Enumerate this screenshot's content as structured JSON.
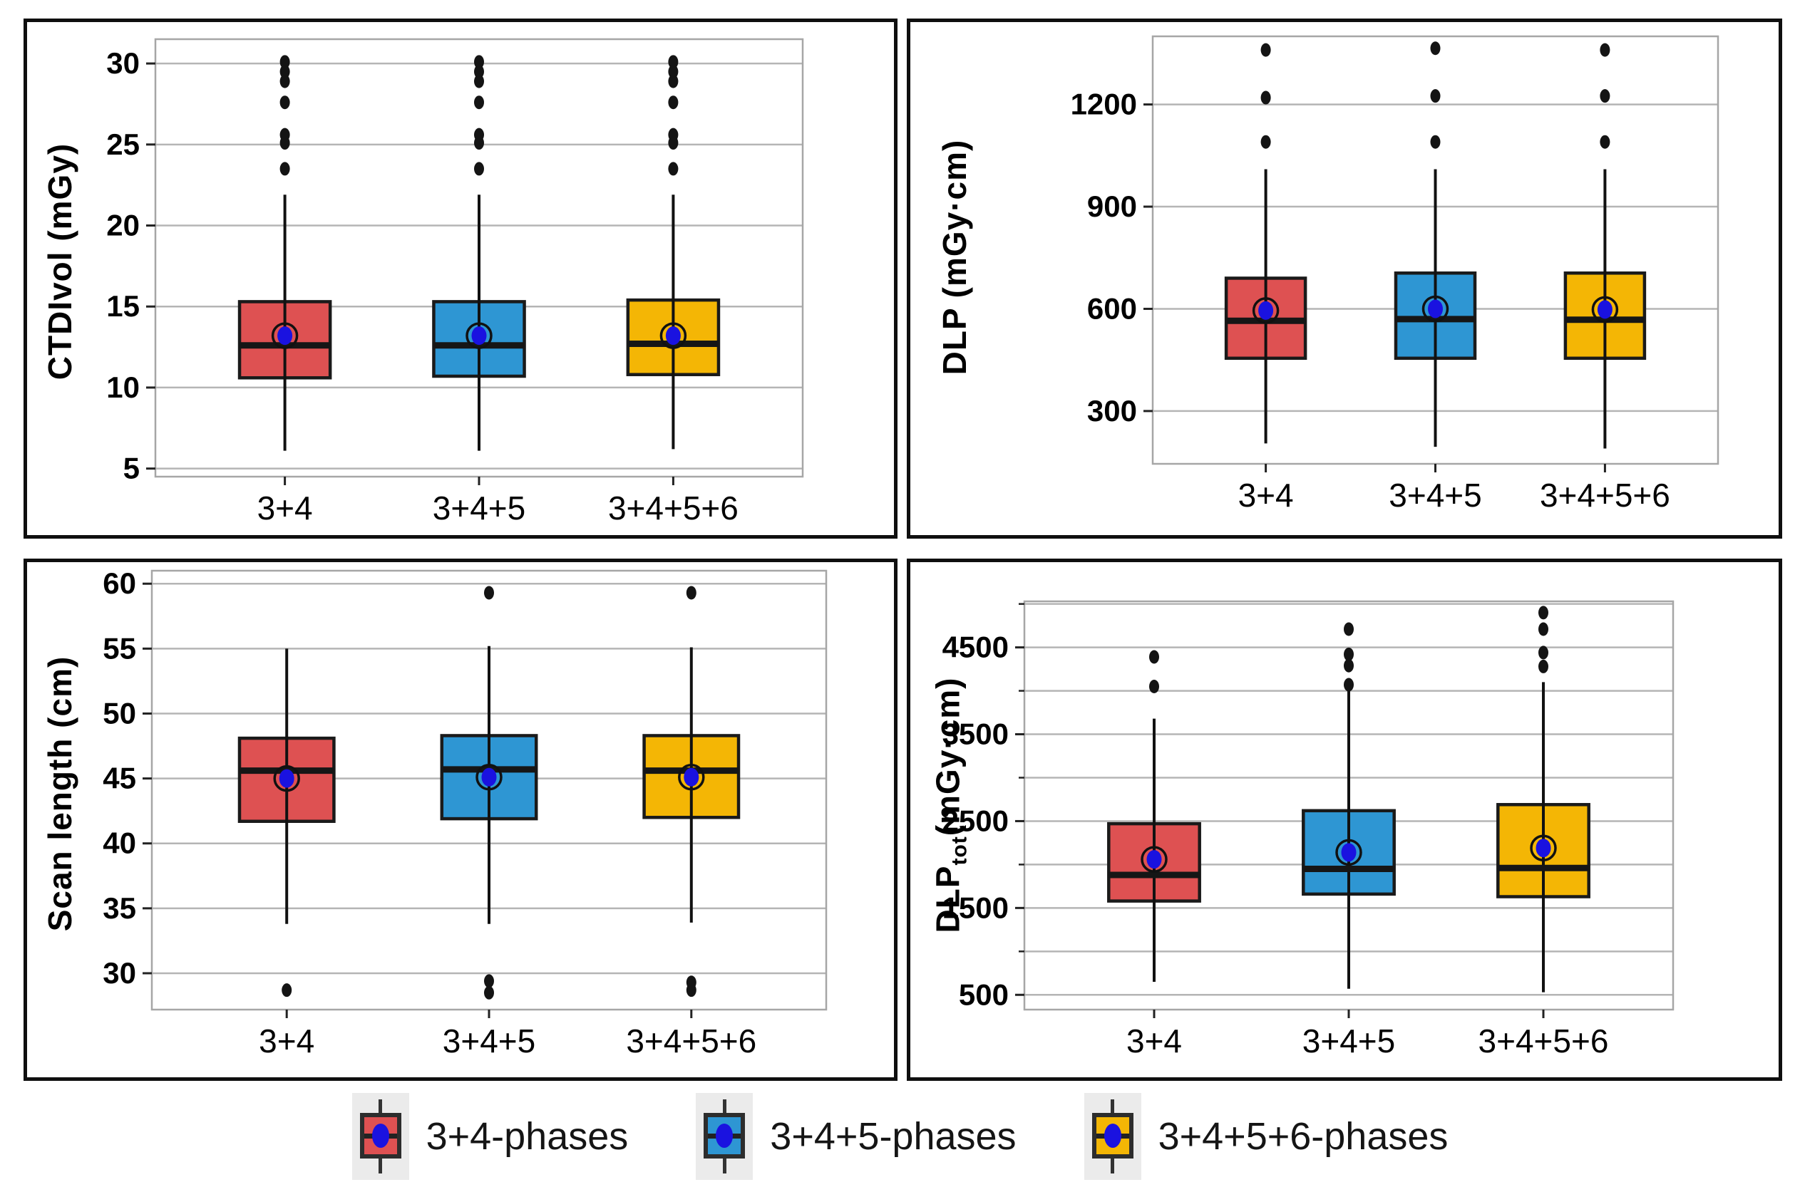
{
  "legend": {
    "items": [
      {
        "label": "3+4-phases",
        "color": "#de5152"
      },
      {
        "label": "3+4+5-phases",
        "color": "#2e96d3"
      },
      {
        "label": "3+4+5+6-phases",
        "color": "#f4b605"
      }
    ],
    "mean_dot_color": "#1a12e0"
  },
  "chart_data": [
    {
      "type": "boxplot",
      "ylabel": "CTDIvol (mGy)",
      "ylabel_prefix": "",
      "ylabel_sub": "",
      "ylabel_suffix": "",
      "ylim": [
        4.5,
        31.5
      ],
      "yticks": [
        5,
        10,
        15,
        20,
        25,
        30
      ],
      "gridlines": [
        5,
        10,
        15,
        20,
        25,
        30
      ],
      "minor_ticks": [],
      "categories": [
        "3+4",
        "3+4+5",
        "3+4+5+6"
      ],
      "groups": [
        {
          "name": "3+4",
          "color": "#de5152",
          "whisker_low": 6.1,
          "q1": 10.6,
          "median": 12.6,
          "mean": 13.2,
          "q3": 15.3,
          "whisker_high": 21.9,
          "outliers": [
            23.5,
            25.1,
            25.6,
            27.6,
            28.9,
            29.5,
            30.1
          ]
        },
        {
          "name": "3+4+5",
          "color": "#2e96d3",
          "whisker_low": 6.1,
          "q1": 10.7,
          "median": 12.6,
          "mean": 13.2,
          "q3": 15.3,
          "whisker_high": 21.9,
          "outliers": [
            23.5,
            25.1,
            25.6,
            27.6,
            28.9,
            29.5,
            30.1
          ]
        },
        {
          "name": "3+4+5+6",
          "color": "#f4b605",
          "whisker_low": 6.2,
          "q1": 10.8,
          "median": 12.7,
          "mean": 13.2,
          "q3": 15.4,
          "whisker_high": 21.9,
          "outliers": [
            23.5,
            25.1,
            25.6,
            27.6,
            28.9,
            29.5,
            30.1
          ]
        }
      ]
    },
    {
      "type": "boxplot",
      "ylabel": "DLP (mGy·cm)",
      "ylabel_prefix": "",
      "ylabel_sub": "",
      "ylabel_suffix": "",
      "ylim": [
        145,
        1400
      ],
      "yticks": [
        300,
        600,
        900,
        1200
      ],
      "gridlines": [
        300,
        600,
        900,
        1200
      ],
      "minor_ticks": [],
      "categories": [
        "3+4",
        "3+4+5",
        "3+4+5+6"
      ],
      "groups": [
        {
          "name": "3+4",
          "color": "#de5152",
          "whisker_low": 205,
          "q1": 455,
          "median": 565,
          "mean": 595,
          "q3": 690,
          "whisker_high": 1010,
          "outliers": [
            1090,
            1220,
            1360
          ]
        },
        {
          "name": "3+4+5",
          "color": "#2e96d3",
          "whisker_low": 195,
          "q1": 455,
          "median": 570,
          "mean": 600,
          "q3": 705,
          "whisker_high": 1010,
          "outliers": [
            1090,
            1225,
            1365
          ]
        },
        {
          "name": "3+4+5+6",
          "color": "#f4b605",
          "whisker_low": 190,
          "q1": 455,
          "median": 568,
          "mean": 598,
          "q3": 705,
          "whisker_high": 1010,
          "outliers": [
            1090,
            1225,
            1360
          ]
        }
      ]
    },
    {
      "type": "boxplot",
      "ylabel": "Scan length (cm)",
      "ylabel_prefix": "",
      "ylabel_sub": "",
      "ylabel_suffix": "",
      "ylim": [
        27.2,
        61.0
      ],
      "yticks": [
        30,
        35,
        40,
        45,
        50,
        55,
        60
      ],
      "gridlines": [
        30,
        35,
        40,
        45,
        50,
        55,
        60
      ],
      "minor_ticks": [],
      "categories": [
        "3+4",
        "3+4+5",
        "3+4+5+6"
      ],
      "groups": [
        {
          "name": "3+4",
          "color": "#de5152",
          "whisker_low": 33.8,
          "q1": 41.7,
          "median": 45.6,
          "mean": 45.0,
          "q3": 48.1,
          "whisker_high": 55.0,
          "outliers": [
            28.7
          ]
        },
        {
          "name": "3+4+5",
          "color": "#2e96d3",
          "whisker_low": 33.8,
          "q1": 41.9,
          "median": 45.7,
          "mean": 45.1,
          "q3": 48.3,
          "whisker_high": 55.2,
          "outliers": [
            28.5,
            29.4,
            59.3
          ]
        },
        {
          "name": "3+4+5+6",
          "color": "#f4b605",
          "whisker_low": 33.9,
          "q1": 42.0,
          "median": 45.6,
          "mean": 45.1,
          "q3": 48.3,
          "whisker_high": 55.1,
          "outliers": [
            28.7,
            29.3,
            59.3
          ]
        }
      ]
    },
    {
      "type": "boxplot",
      "ylabel": "",
      "ylabel_prefix": "DLP",
      "ylabel_sub": "tot",
      "ylabel_suffix": "(mGy·cm)",
      "ylim": [
        330,
        5030
      ],
      "yticks": [
        500,
        1500,
        2500,
        3500,
        4500
      ],
      "gridlines": [
        500,
        1000,
        1500,
        2000,
        2500,
        3000,
        3500,
        4000,
        4500,
        5000
      ],
      "minor_ticks": [
        1000,
        2000,
        3000,
        4000,
        5000
      ],
      "categories": [
        "3+4",
        "3+4+5",
        "3+4+5+6"
      ],
      "groups": [
        {
          "name": "3+4",
          "color": "#de5152",
          "whisker_low": 650,
          "q1": 1580,
          "median": 1880,
          "mean": 2060,
          "q3": 2470,
          "whisker_high": 3680,
          "outliers": [
            4050,
            4390
          ]
        },
        {
          "name": "3+4+5",
          "color": "#2e96d3",
          "whisker_low": 570,
          "q1": 1660,
          "median": 1950,
          "mean": 2140,
          "q3": 2620,
          "whisker_high": 4000,
          "outliers": [
            4070,
            4290,
            4420,
            4710
          ]
        },
        {
          "name": "3+4+5+6",
          "color": "#f4b605",
          "whisker_low": 530,
          "q1": 1630,
          "median": 1960,
          "mean": 2190,
          "q3": 2690,
          "whisker_high": 4100,
          "outliers": [
            4280,
            4440,
            4710,
            4900
          ]
        }
      ]
    }
  ]
}
